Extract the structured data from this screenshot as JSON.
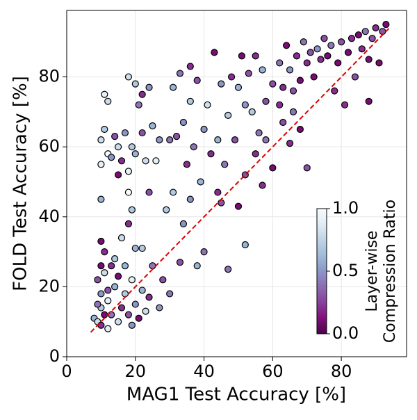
{
  "chart_data": {
    "type": "scatter",
    "xlabel": "MAG1 Test Accuracy [%]",
    "ylabel": "FOLD Test Accuracy [%]",
    "xlim": [
      0,
      99
    ],
    "ylim": [
      0,
      99
    ],
    "xticks": [
      0,
      20,
      40,
      60,
      80
    ],
    "yticks": [
      0,
      20,
      40,
      60,
      80
    ],
    "grid": true,
    "series": [
      {
        "x": [
          8,
          9,
          10,
          10,
          11,
          10,
          9,
          10,
          11,
          10,
          12,
          13,
          14,
          15,
          16,
          17,
          18,
          19,
          20,
          21,
          22,
          23,
          24,
          25,
          27,
          28,
          14,
          16,
          18,
          20,
          22,
          12,
          9,
          11,
          13,
          15,
          17,
          19,
          12,
          30,
          10,
          10,
          11,
          11,
          12,
          12,
          10,
          13,
          14,
          15,
          16,
          17,
          18,
          18,
          19,
          20,
          21,
          22,
          23,
          24,
          25,
          26,
          18,
          20,
          22,
          24,
          19,
          27,
          29,
          15,
          31,
          32,
          33,
          34,
          35,
          36,
          37,
          38,
          39,
          40,
          41,
          42,
          43,
          44,
          45,
          46,
          47,
          48,
          49,
          50,
          51,
          52,
          53,
          54,
          55,
          56,
          57,
          58,
          36,
          30,
          34,
          33,
          38,
          40,
          45,
          47,
          52,
          44,
          31,
          36,
          60,
          62,
          63,
          64,
          65,
          66,
          67,
          68,
          69,
          70,
          71,
          72,
          73,
          74,
          75,
          76,
          77,
          78,
          79,
          80,
          81,
          82,
          83,
          84,
          85,
          86,
          87,
          88,
          89,
          90,
          91,
          92,
          93,
          88,
          52,
          55,
          58,
          60,
          63,
          65,
          68,
          70,
          57,
          50,
          62,
          66
        ],
        "values": [
          11,
          10,
          9,
          14,
          12,
          18,
          22,
          26,
          30,
          33,
          16,
          12,
          20,
          10,
          14,
          18,
          12,
          22,
          15,
          11,
          19,
          13,
          17,
          26,
          14,
          22,
          28,
          34,
          38,
          31,
          31,
          8,
          15,
          24,
          26,
          23,
          26,
          9,
          19,
          18,
          55,
          62,
          65,
          75,
          58,
          73,
          45,
          57,
          63,
          60,
          56,
          64,
          53,
          47,
          60,
          58,
          72,
          64,
          56,
          77,
          66,
          56,
          80,
          78,
          75,
          47,
          42,
          62,
          42,
          52,
          77,
          63,
          81,
          67,
          55,
          73,
          60,
          79,
          50,
          65,
          72,
          58,
          87,
          62,
          78,
          55,
          69,
          80,
          62,
          77,
          86,
          72,
          81,
          70,
          86,
          64,
          82,
          73,
          83,
          62,
          38,
          27,
          26,
          30,
          44,
          25,
          32,
          47,
          47,
          45,
          78,
          84,
          77,
          89,
          82,
          76,
          86,
          79,
          90,
          84,
          87,
          80,
          88,
          85,
          91,
          86,
          89,
          76,
          84,
          90,
          72,
          87,
          91,
          80,
          92,
          88,
          93,
          85,
          91,
          94,
          84,
          93,
          95,
          73,
          52,
          58,
          62,
          54,
          67,
          61,
          65,
          54,
          49,
          43,
          72,
          70
        ],
        "c": [
          0.6,
          0.8,
          0.2,
          0.7,
          0.1,
          0.5,
          0.3,
          0.1,
          0.2,
          0.1,
          0.9,
          0.4,
          0.6,
          0.8,
          0.2,
          0.7,
          0.3,
          0.9,
          0.5,
          0.1,
          0.6,
          0.8,
          0.2,
          0.4,
          0.5,
          0.3,
          0.7,
          0.8,
          0.2,
          0.6,
          0.7,
          0.9,
          0.4,
          0.8,
          0.2,
          0.1,
          0.6,
          0.5,
          0.3,
          0.4,
          0.9,
          0.8,
          0.7,
          0.9,
          1.0,
          0.8,
          0.6,
          0.5,
          0.3,
          0.8,
          0.2,
          0.5,
          0.9,
          1.0,
          0.7,
          0.6,
          0.4,
          0.3,
          0.8,
          0.5,
          0.6,
          0.9,
          0.8,
          0.7,
          0.2,
          0.3,
          0.7,
          0.5,
          0.7,
          0.1,
          0.6,
          0.3,
          0.4,
          0.5,
          0.2,
          0.7,
          0.4,
          0.3,
          0.6,
          0.5,
          0.8,
          0.2,
          0.1,
          0.6,
          0.5,
          0.4,
          0.7,
          0.2,
          0.3,
          0.6,
          0.1,
          0.5,
          0.3,
          0.7,
          0.2,
          0.4,
          0.6,
          0.3,
          0.2,
          0.4,
          0.5,
          0.3,
          0.6,
          0.4,
          0.3,
          0.4,
          0.6,
          0.2,
          0.7,
          0.5,
          0.3,
          0.4,
          0.2,
          0.1,
          0.5,
          0.3,
          0.2,
          0.1,
          0.4,
          0.2,
          0.3,
          0.1,
          0.5,
          0.2,
          0.3,
          0.1,
          0.4,
          0.2,
          0.1,
          0.3,
          0.2,
          0.1,
          0.2,
          0.3,
          0.1,
          0.2,
          0.4,
          0.1,
          0.3,
          0.2,
          0.1,
          0.3,
          0.1,
          0.1,
          0.3,
          0.2,
          0.4,
          0.1,
          0.3,
          0.2,
          0.1,
          0.3,
          0.2,
          0.1,
          0.2,
          0.4
        ]
      }
    ],
    "reference_line": {
      "x": [
        7,
        94
      ],
      "y": [
        7,
        94
      ],
      "color": "#dd0000"
    },
    "colorbar": {
      "label": [
        "Layer-wise",
        "Compression Ratio"
      ],
      "clim": [
        0,
        1
      ],
      "ticks": [
        {
          "value": 0,
          "label": "0.0"
        },
        {
          "value": 0.5,
          "label": "0.5"
        },
        {
          "value": 1,
          "label": "1.0"
        }
      ]
    }
  }
}
